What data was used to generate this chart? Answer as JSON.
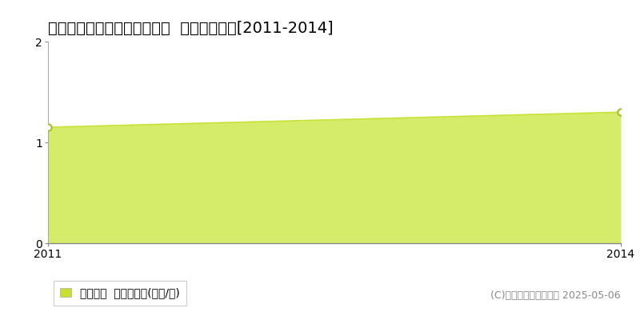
{
  "title": "多可郡多可町八千代区下三原  土地価格推移[2011-2014]",
  "years": [
    2011,
    2014
  ],
  "values": [
    1.15,
    1.3
  ],
  "line_color": "#c8e030",
  "fill_color": "#d4ec6a",
  "marker_color": "#ffffff",
  "marker_edge_color": "#a8bc28",
  "xlim": [
    2011,
    2014
  ],
  "ylim": [
    0,
    2
  ],
  "yticks": [
    0,
    1,
    2
  ],
  "xticks": [
    2011,
    2014
  ],
  "grid_color": "#bbbbbb",
  "bg_color": "#ffffff",
  "legend_label": "土地価格  平均坪単価(万円/坪)",
  "legend_marker_color": "#c8e030",
  "copyright_text": "(C)土地価格ドットコム 2025-05-06",
  "title_fontsize": 14,
  "axis_fontsize": 10,
  "legend_fontsize": 10,
  "copyright_fontsize": 9
}
